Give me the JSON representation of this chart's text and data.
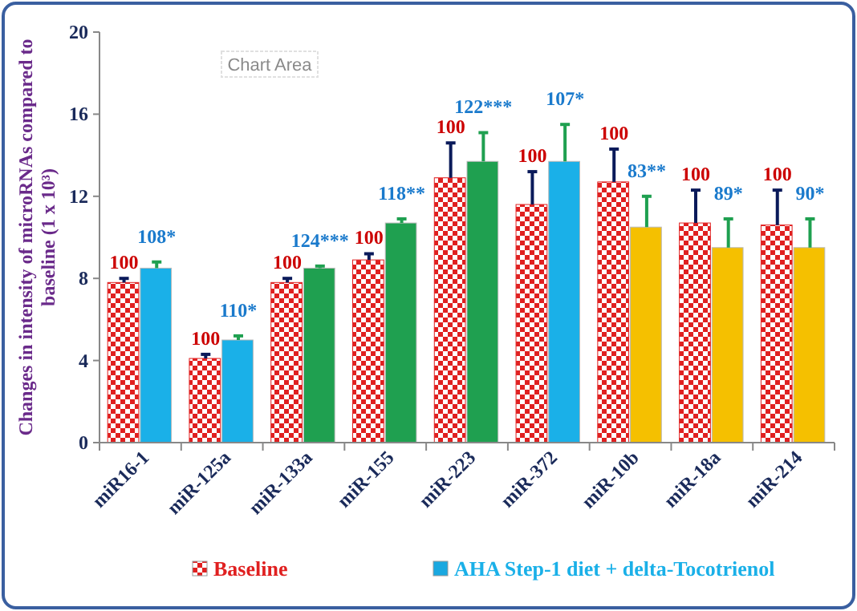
{
  "chart_data": {
    "type": "bar",
    "ylabel": "Changes in intensity of microRNAs compared to baseline (1 x 10³)",
    "categories": [
      "miR16-1",
      "miR-125a",
      "miR-133a",
      "miR-155",
      "miR-223",
      "miR-372",
      "miR-10b",
      "miR-18a",
      "miR-214"
    ],
    "series": [
      {
        "name": "Baseline",
        "color": "#e02020",
        "values": [
          7.8,
          4.1,
          7.8,
          8.9,
          12.9,
          11.6,
          12.7,
          10.7,
          10.6
        ],
        "errors": [
          [
            7.8,
            8.0
          ],
          [
            4.1,
            4.3
          ],
          [
            7.8,
            8.0
          ],
          [
            8.9,
            9.2
          ],
          [
            12.9,
            14.6
          ],
          [
            11.6,
            13.2
          ],
          [
            12.7,
            14.3
          ],
          [
            10.7,
            12.3
          ],
          [
            10.6,
            12.3
          ]
        ]
      },
      {
        "name": "AHA Step-1 diet + delta-Tocotrienol",
        "color": "#1aa8e0",
        "colors": [
          "#1ab0e8",
          "#1ab0e8",
          "#1fa050",
          "#1fa050",
          "#1fa050",
          "#1ab0e8",
          "#f5c000",
          "#f5c000",
          "#f5c000"
        ],
        "values": [
          8.5,
          5.0,
          8.5,
          10.7,
          13.7,
          13.7,
          10.5,
          9.5,
          9.5
        ],
        "errors": [
          [
            8.5,
            8.8
          ],
          [
            5.0,
            5.2
          ],
          [
            8.5,
            8.6
          ],
          [
            10.7,
            10.9
          ],
          [
            13.7,
            15.1
          ],
          [
            13.7,
            15.5
          ],
          [
            10.5,
            12.0
          ],
          [
            9.5,
            10.9
          ],
          [
            9.5,
            10.9
          ]
        ]
      }
    ],
    "ylim": [
      0,
      20
    ],
    "yticks": [
      0,
      4,
      8,
      12,
      16,
      20
    ],
    "grid": false,
    "legend": "bottom",
    "annotations": [
      "Chart Area",
      {
        "text": "100",
        "x": "miR16-1",
        "y": 7.8
      },
      {
        "text": "100",
        "x": "miR-125a",
        "y": 4.1
      },
      {
        "text": "100",
        "x": "miR-133a",
        "y": 7.8
      },
      {
        "text": "100",
        "x": "miR-155",
        "y": 8.9
      },
      {
        "text": "100",
        "x": "miR-223",
        "y": 12.9
      },
      {
        "text": "100",
        "x": "miR-372",
        "y": 11.6
      },
      {
        "text": "100",
        "x": "miR-10b",
        "y": 12.7
      },
      {
        "text": "100",
        "x": "miR-18a",
        "y": 10.7
      },
      {
        "text": "100",
        "x": "miR-214",
        "y": 10.6
      },
      {
        "text": "108*",
        "x": "miR16-1",
        "y": 8.5
      },
      {
        "text": "110*",
        "x": "miR-125a",
        "y": 5.0
      },
      {
        "text": "124***",
        "x": "miR-133a",
        "y": 8.5
      },
      {
        "text": "118**",
        "x": "miR-155",
        "y": 10.7
      },
      {
        "text": "122***",
        "x": "miR-223",
        "y": 13.7
      },
      {
        "text": "107*",
        "x": "miR-372",
        "y": 13.7
      },
      {
        "text": "83**",
        "x": "miR-10b",
        "y": 10.5
      },
      {
        "text": "89*",
        "x": "miR-18a",
        "y": 9.5
      },
      {
        "text": "90*",
        "x": "miR-214",
        "y": 9.5
      }
    ]
  }
}
